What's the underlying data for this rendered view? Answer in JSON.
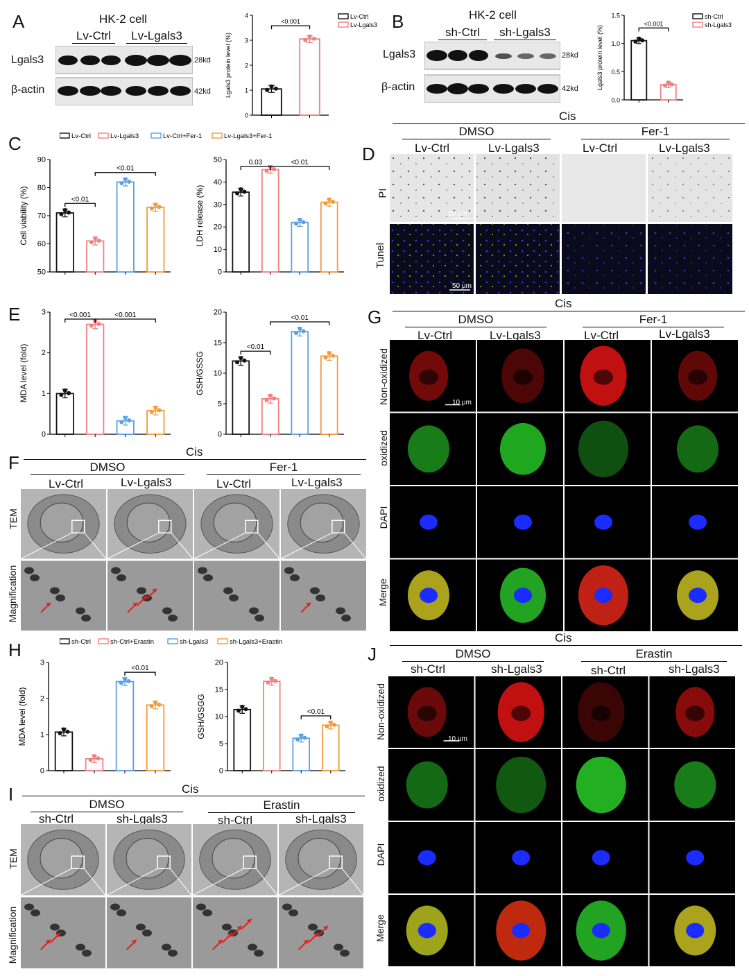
{
  "panels": {
    "A": "A",
    "B": "B",
    "C": "C",
    "D": "D",
    "E": "E",
    "F": "F",
    "G": "G",
    "H": "H",
    "I": "I",
    "J": "J"
  },
  "wbA": {
    "title": "HK-2 cell",
    "g1": "Lv-Ctrl",
    "g2": "Lv-Lgals3",
    "row1": "Lgals3",
    "row2": "β-actin",
    "kd1": "28kd",
    "kd2": "42kd"
  },
  "wbB": {
    "title": "HK-2 cell",
    "g1": "sh-Ctrl",
    "g2": "sh-Lgals3",
    "row1": "Lgals3",
    "row2": "β-actin",
    "kd1": "28kd",
    "kd2": "42kd"
  },
  "legendC": [
    "Lv-Ctrl",
    "Lv-Lgals3",
    "Lv-Ctrl+Fer-1",
    "Lv-Lgals3+Fer-1"
  ],
  "legendH": [
    "sh-Ctrl",
    "sh-Ctrl+Erastin",
    "sh-Lgals3",
    "sh-Lgals3+Erastin"
  ],
  "colors": {
    "black": "#111111",
    "red": "#f08080",
    "blue": "#5aa0e6",
    "orange": "#f39a3c"
  },
  "D": {
    "cis": "Cis",
    "g1": "DMSO",
    "g2": "Fer-1",
    "c1": "Lv-Ctrl",
    "c2": "Lv-Lgals3",
    "c3": "Lv-Ctrl",
    "c4": "Lv-Lgals3",
    "r1": "PI",
    "r2": "Tunel",
    "scale": "50 μm"
  },
  "G": {
    "cis": "Cis",
    "g1": "DMSO",
    "g2": "Fer-1",
    "c1": "Lv-Ctrl",
    "c2": "Lv-Lgals3",
    "c3": "Lv-Ctrl",
    "c4": "Lv-Lgals3",
    "r1": "Non-oxidized",
    "r2": "oxidized",
    "r3": "DAPI",
    "r4": "Merge",
    "scale": "10 μm"
  },
  "F": {
    "cis": "Cis",
    "g1": "DMSO",
    "g2": "Fer-1",
    "c1": "Lv-Ctrl",
    "c2": "Lv-Lgals3",
    "c3": "Lv-Ctrl",
    "c4": "Lv-Lgals3",
    "r1": "TEM",
    "r2": "Magnification"
  },
  "I": {
    "cis": "Cis",
    "g1": "DMSO",
    "g2": "Erastin",
    "c1": "sh-Ctrl",
    "c2": "sh-Lgals3",
    "c3": "sh-Ctrl",
    "c4": "sh-Lgals3",
    "r1": "TEM",
    "r2": "Magnification"
  },
  "J": {
    "cis": "Cis",
    "g1": "DMSO",
    "g2": "Erastin",
    "c1": "sh-Ctrl",
    "c2": "sh-Lgals3",
    "c3": "sh-Ctrl",
    "c4": "sh-Lgals3",
    "r1": "Non-oxidized",
    "r2": "oxidized",
    "r3": "DAPI",
    "r4": "Merge",
    "scale": "10 μm"
  },
  "chart_data": [
    {
      "id": "A",
      "type": "bar",
      "categories": [
        "Lv-Ctrl",
        "Lv-Lgals3"
      ],
      "values": [
        1.05,
        3.05
      ],
      "ylabel": "Lgals3 protein level (%)",
      "ylim": [
        0,
        4
      ],
      "yticks": [
        0,
        1,
        2,
        3,
        4
      ],
      "legend": [
        "Lv-Ctrl",
        "Lv-Lgals3"
      ],
      "colors": [
        "#111111",
        "#f08080"
      ],
      "annotations": [
        {
          "from": 0,
          "to": 1,
          "text": "<0.001"
        }
      ]
    },
    {
      "id": "B",
      "type": "bar",
      "categories": [
        "sh-Ctrl",
        "sh-Lgals3"
      ],
      "values": [
        1.05,
        0.27
      ],
      "ylabel": "Lgals3 protein level (%)",
      "ylim": [
        0,
        1.5
      ],
      "yticks": [
        0.0,
        0.5,
        1.0,
        1.5
      ],
      "legend": [
        "sh-Ctrl",
        "sh-Lgals3"
      ],
      "colors": [
        "#111111",
        "#f08080"
      ],
      "annotations": [
        {
          "from": 0,
          "to": 1,
          "text": "<0.001"
        }
      ]
    },
    {
      "id": "C1",
      "type": "bar",
      "categories": [
        "Lv-Ctrl",
        "Lv-Lgals3",
        "Lv-Ctrl+Fer-1",
        "Lv-Lgals3+Fer-1"
      ],
      "values": [
        71,
        61,
        82,
        73
      ],
      "ylabel": "Cell viability (%)",
      "ylim": [
        50,
        90
      ],
      "yticks": [
        50,
        60,
        70,
        80,
        90
      ],
      "colors": [
        "#111111",
        "#f08080",
        "#5aa0e6",
        "#f39a3c"
      ],
      "annotations": [
        {
          "from": 0,
          "to": 1,
          "text": "<0.01"
        },
        {
          "from": 1,
          "to": 3,
          "text": "<0.01"
        }
      ]
    },
    {
      "id": "C2",
      "type": "bar",
      "categories": [
        "Lv-Ctrl",
        "Lv-Lgals3",
        "Lv-Ctrl+Fer-1",
        "Lv-Lgals3+Fer-1"
      ],
      "values": [
        35.5,
        45.5,
        22,
        31
      ],
      "ylabel": "LDH release (%)",
      "ylim": [
        0,
        50
      ],
      "yticks": [
        0,
        10,
        20,
        30,
        40,
        50
      ],
      "colors": [
        "#111111",
        "#f08080",
        "#5aa0e6",
        "#f39a3c"
      ],
      "annotations": [
        {
          "from": 0,
          "to": 1,
          "text": "0.03"
        },
        {
          "from": 1,
          "to": 3,
          "text": "<0.01"
        }
      ]
    },
    {
      "id": "E1",
      "type": "bar",
      "categories": [
        "Lv-Ctrl",
        "Lv-Lgals3",
        "Lv-Ctrl+Fer-1",
        "Lv-Lgals3+Fer-1"
      ],
      "values": [
        1.0,
        2.7,
        0.33,
        0.58
      ],
      "ylabel": "MDA level (fold)",
      "ylim": [
        0,
        3
      ],
      "yticks": [
        0,
        1,
        2,
        3
      ],
      "colors": [
        "#111111",
        "#f08080",
        "#5aa0e6",
        "#f39a3c"
      ],
      "annotations": [
        {
          "from": 0,
          "to": 1,
          "text": "<0.001"
        },
        {
          "from": 1,
          "to": 3,
          "text": "<0.001"
        }
      ]
    },
    {
      "id": "E2",
      "type": "bar",
      "categories": [
        "Lv-Ctrl",
        "Lv-Lgals3",
        "Lv-Ctrl+Fer-1",
        "Lv-Lgals3+Fer-1"
      ],
      "values": [
        12,
        5.8,
        16.8,
        12.8
      ],
      "ylabel": "GSH/GSSG",
      "ylim": [
        0,
        20
      ],
      "yticks": [
        0,
        5,
        10,
        15,
        20
      ],
      "colors": [
        "#111111",
        "#f08080",
        "#5aa0e6",
        "#f39a3c"
      ],
      "annotations": [
        {
          "from": 0,
          "to": 1,
          "text": "<0.01"
        },
        {
          "from": 1,
          "to": 3,
          "text": "<0.01"
        }
      ]
    },
    {
      "id": "H1",
      "type": "bar",
      "categories": [
        "sh-Ctrl",
        "sh-Ctrl+Erastin",
        "sh-Lgals3",
        "sh-Lgals3+Erastin"
      ],
      "values": [
        1.07,
        0.33,
        2.47,
        1.82
      ],
      "ylabel": "MDA level (fold)",
      "ylim": [
        0,
        3
      ],
      "yticks": [
        0,
        1,
        2,
        3
      ],
      "colors": [
        "#111111",
        "#f08080",
        "#5aa0e6",
        "#f39a3c"
      ],
      "annotations": [
        {
          "from": 2,
          "to": 3,
          "text": "<0.01"
        }
      ]
    },
    {
      "id": "H2",
      "type": "bar",
      "categories": [
        "sh-Ctrl",
        "sh-Ctrl+Erastin",
        "sh-Lgals3",
        "sh-Lgals3+Erastin"
      ],
      "values": [
        11.3,
        16.5,
        6,
        8.4
      ],
      "ylabel": "GSH/GSGG",
      "ylim": [
        0,
        20
      ],
      "yticks": [
        0,
        5,
        10,
        15,
        20
      ],
      "colors": [
        "#111111",
        "#f08080",
        "#5aa0e6",
        "#f39a3c"
      ],
      "annotations": [
        {
          "from": 2,
          "to": 3,
          "text": "<0.01"
        }
      ]
    }
  ]
}
